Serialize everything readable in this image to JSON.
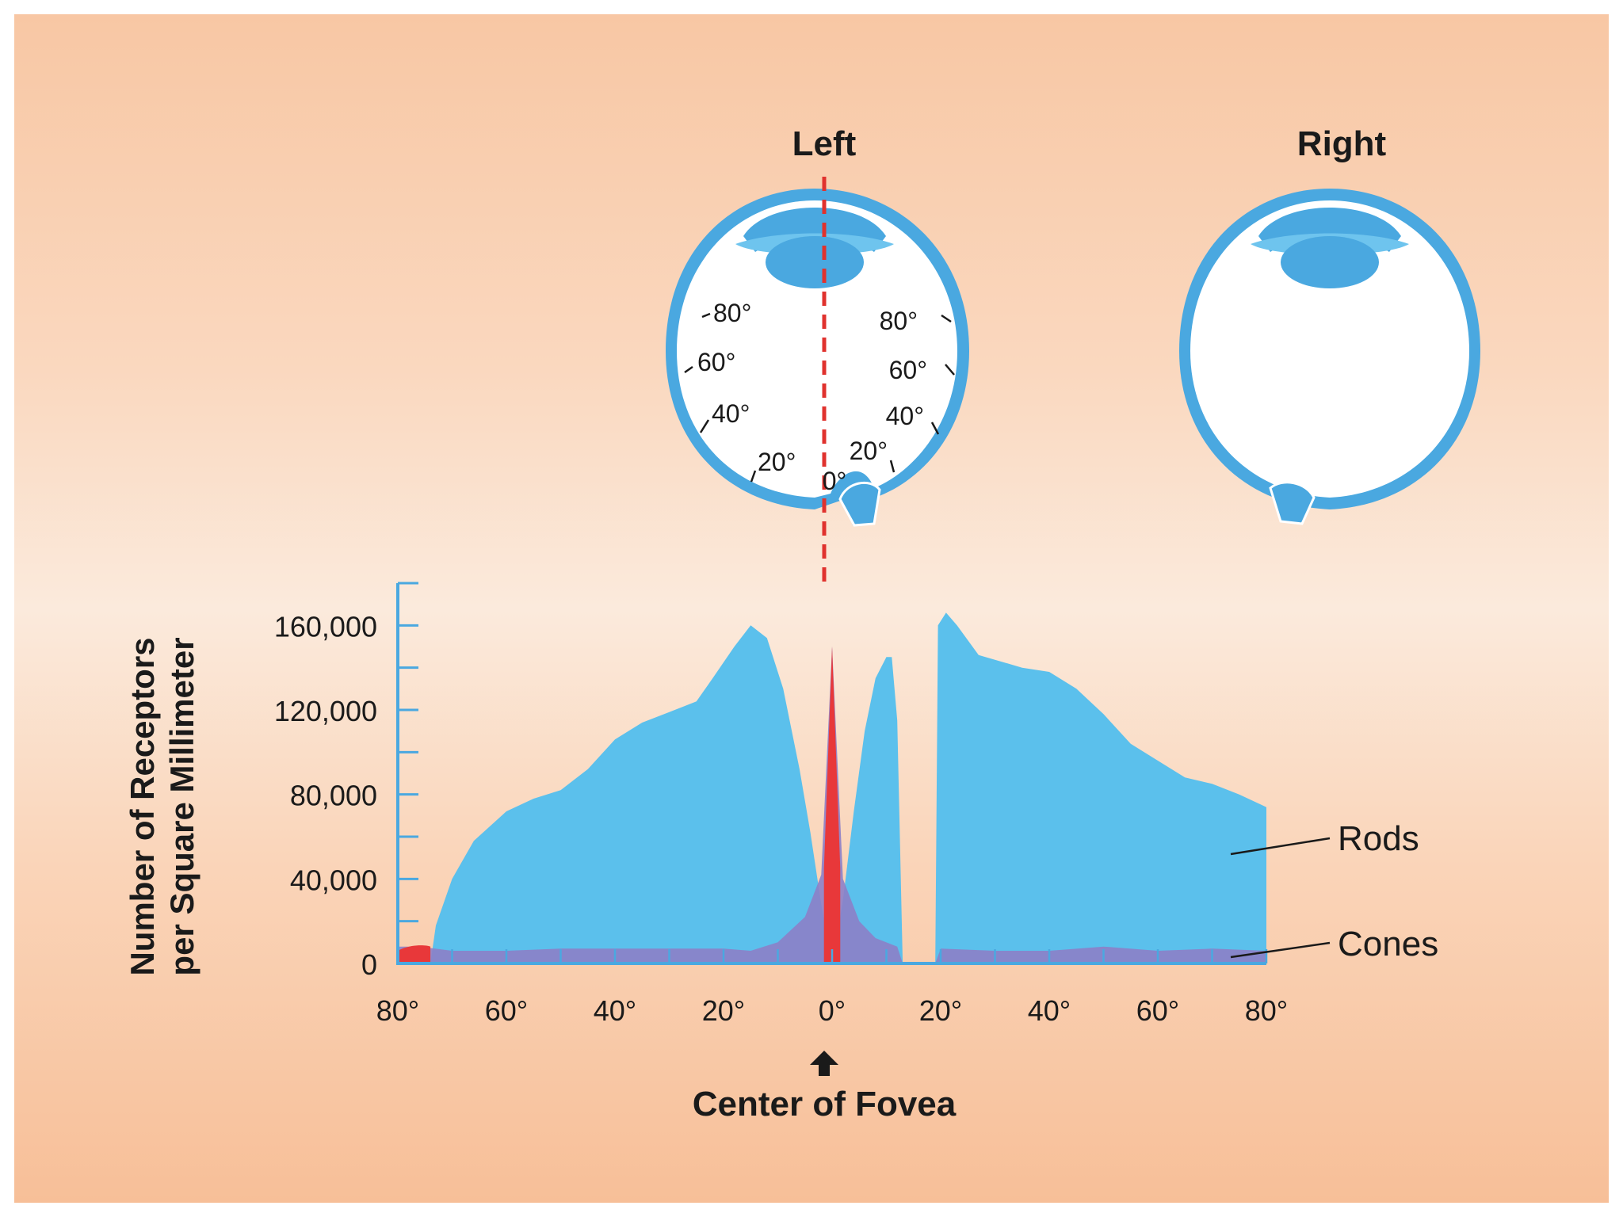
{
  "eyes": {
    "left_label": "Left",
    "right_label": "Right",
    "left_angle_labels": [
      "80°",
      "60°",
      "40°",
      "20°"
    ],
    "right_angle_labels": [
      "80°",
      "60°",
      "40°",
      "20°"
    ],
    "center_label": "0°"
  },
  "chart_data": {
    "type": "area",
    "title": "",
    "ylabel_line1": "Number of Receptors",
    "ylabel_line2": "per Square Millimeter",
    "xlabel": "Center of Fovea",
    "x_tick_labels": [
      "80°",
      "60°",
      "40°",
      "20°",
      "0°",
      "20°",
      "40°",
      "60°",
      "80°"
    ],
    "x_tick_values": [
      -80,
      -60,
      -40,
      -20,
      0,
      20,
      40,
      60,
      80
    ],
    "y_tick_labels": [
      "0",
      "40,000",
      "80,000",
      "120,000",
      "160,000"
    ],
    "y_tick_values": [
      0,
      40000,
      80000,
      120000,
      160000
    ],
    "xlim": [
      -80,
      80
    ],
    "ylim": [
      0,
      180000
    ],
    "blind_spot": [
      13,
      19
    ],
    "series": [
      {
        "name": "Rods",
        "color": "#5bc0ec",
        "points": [
          [
            -80,
            0
          ],
          [
            -74,
            0
          ],
          [
            -73,
            18000
          ],
          [
            -70,
            40000
          ],
          [
            -66,
            58000
          ],
          [
            -60,
            72000
          ],
          [
            -55,
            78000
          ],
          [
            -50,
            82000
          ],
          [
            -45,
            92000
          ],
          [
            -40,
            106000
          ],
          [
            -35,
            114000
          ],
          [
            -30,
            119000
          ],
          [
            -25,
            124000
          ],
          [
            -22,
            135000
          ],
          [
            -18,
            150000
          ],
          [
            -15,
            160000
          ],
          [
            -12,
            154000
          ],
          [
            -9,
            130000
          ],
          [
            -6,
            92000
          ],
          [
            -4,
            62000
          ],
          [
            -2,
            28000
          ],
          [
            -0.5,
            6000
          ],
          [
            0,
            0
          ],
          [
            0.5,
            6000
          ],
          [
            2,
            30000
          ],
          [
            4,
            72000
          ],
          [
            6,
            110000
          ],
          [
            8,
            135000
          ],
          [
            10,
            145000
          ],
          [
            11,
            145000
          ],
          [
            12,
            115000
          ],
          [
            13,
            0
          ],
          [
            19,
            0
          ],
          [
            19.5,
            160000
          ],
          [
            21,
            166000
          ],
          [
            23,
            160000
          ],
          [
            27,
            146000
          ],
          [
            35,
            140000
          ],
          [
            40,
            138000
          ],
          [
            45,
            130000
          ],
          [
            50,
            118000
          ],
          [
            55,
            104000
          ],
          [
            60,
            96000
          ],
          [
            65,
            88000
          ],
          [
            70,
            85000
          ],
          [
            75,
            80000
          ],
          [
            80,
            74000
          ],
          [
            80,
            0
          ]
        ]
      },
      {
        "name": "Cones",
        "color": "#8c80c8",
        "points": [
          [
            -80,
            8000
          ],
          [
            -76,
            8000
          ],
          [
            -70,
            6000
          ],
          [
            -60,
            6000
          ],
          [
            -50,
            7000
          ],
          [
            -40,
            7000
          ],
          [
            -30,
            7000
          ],
          [
            -20,
            7000
          ],
          [
            -15,
            6000
          ],
          [
            -10,
            10000
          ],
          [
            -5,
            22000
          ],
          [
            -2,
            42000
          ],
          [
            0,
            150000
          ],
          [
            2,
            40000
          ],
          [
            5,
            20000
          ],
          [
            8,
            12000
          ],
          [
            12,
            8000
          ],
          [
            13,
            0
          ],
          [
            19,
            0
          ],
          [
            20,
            7000
          ],
          [
            30,
            6000
          ],
          [
            40,
            6000
          ],
          [
            50,
            8000
          ],
          [
            60,
            6000
          ],
          [
            70,
            7000
          ],
          [
            80,
            6000
          ]
        ]
      }
    ],
    "annotations": {
      "rods_label": "Rods",
      "cones_label": "Cones"
    }
  }
}
